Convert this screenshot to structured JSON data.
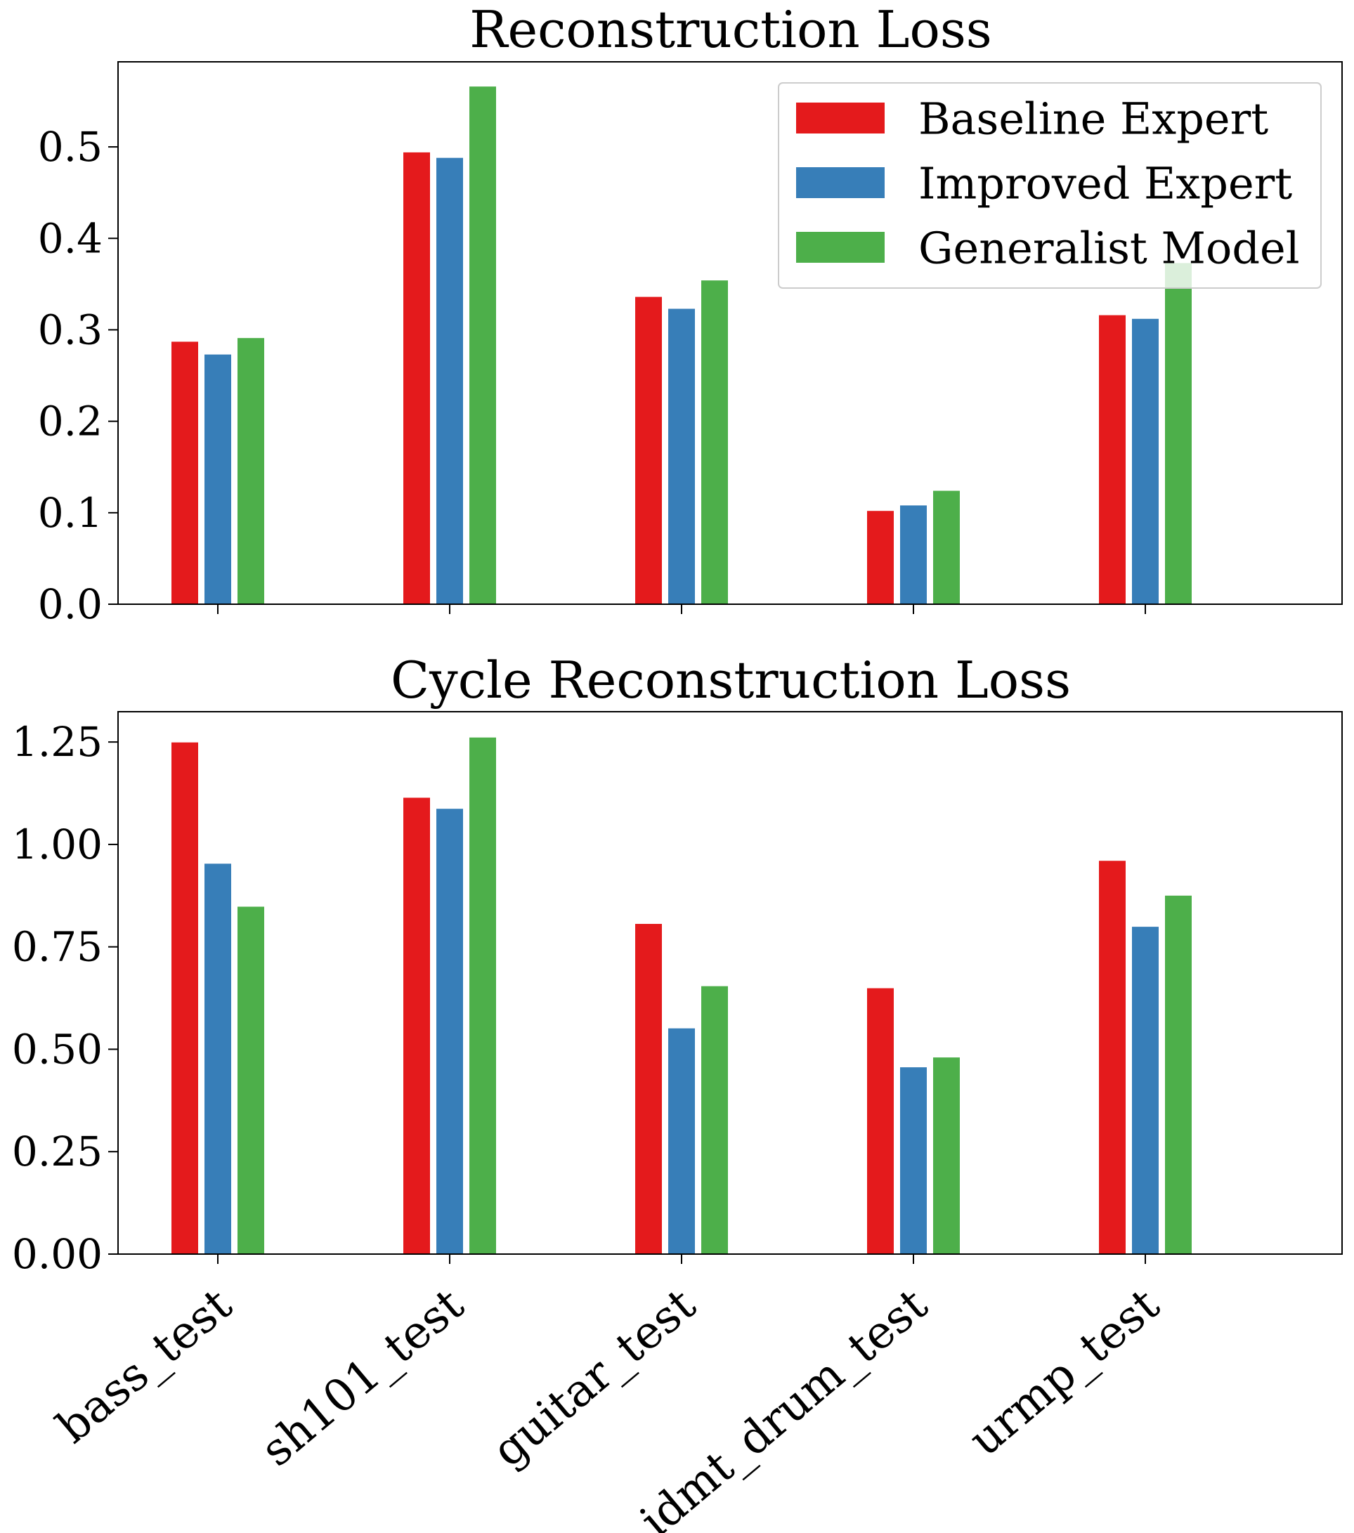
{
  "colors": {
    "baseline": "#e41a1c",
    "improved": "#377eb8",
    "generalist": "#4daf4a"
  },
  "categories": [
    "bass_test",
    "sh101_test",
    "guitar_test",
    "idmt_drum_test",
    "urmp_test"
  ],
  "legend": {
    "placement": "top-right of first panel",
    "entries": [
      "Baseline Expert",
      "Improved Expert",
      "Generalist Model"
    ]
  },
  "chart_data": [
    {
      "type": "bar",
      "title": "Reconstruction Loss",
      "xlabel": "",
      "ylabel": "",
      "categories": [
        "bass_test",
        "sh101_test",
        "guitar_test",
        "idmt_drum_test",
        "urmp_test"
      ],
      "ylim": [
        0,
        0.593
      ],
      "yticks": [
        "0.0",
        "0.1",
        "0.2",
        "0.3",
        "0.4",
        "0.5"
      ],
      "grid": false,
      "series": [
        {
          "name": "Baseline Expert",
          "values": [
            0.287,
            0.494,
            0.336,
            0.102,
            0.316
          ]
        },
        {
          "name": "Improved Expert",
          "values": [
            0.273,
            0.488,
            0.323,
            0.108,
            0.312
          ]
        },
        {
          "name": "Generalist Model",
          "values": [
            0.291,
            0.566,
            0.354,
            0.124,
            0.373
          ]
        }
      ]
    },
    {
      "type": "bar",
      "title": "Cycle Reconstruction Loss",
      "xlabel": "",
      "ylabel": "",
      "categories": [
        "bass_test",
        "sh101_test",
        "guitar_test",
        "idmt_drum_test",
        "urmp_test"
      ],
      "ylim": [
        0,
        1.324
      ],
      "yticks": [
        "0.00",
        "0.25",
        "0.50",
        "0.75",
        "1.00",
        "1.25"
      ],
      "grid": false,
      "series": [
        {
          "name": "Baseline Expert",
          "values": [
            1.249,
            1.114,
            0.806,
            0.649,
            0.96
          ]
        },
        {
          "name": "Improved Expert",
          "values": [
            0.953,
            1.087,
            0.551,
            0.456,
            0.799
          ]
        },
        {
          "name": "Generalist Model",
          "values": [
            0.848,
            1.261,
            0.654,
            0.48,
            0.875
          ]
        }
      ]
    }
  ]
}
